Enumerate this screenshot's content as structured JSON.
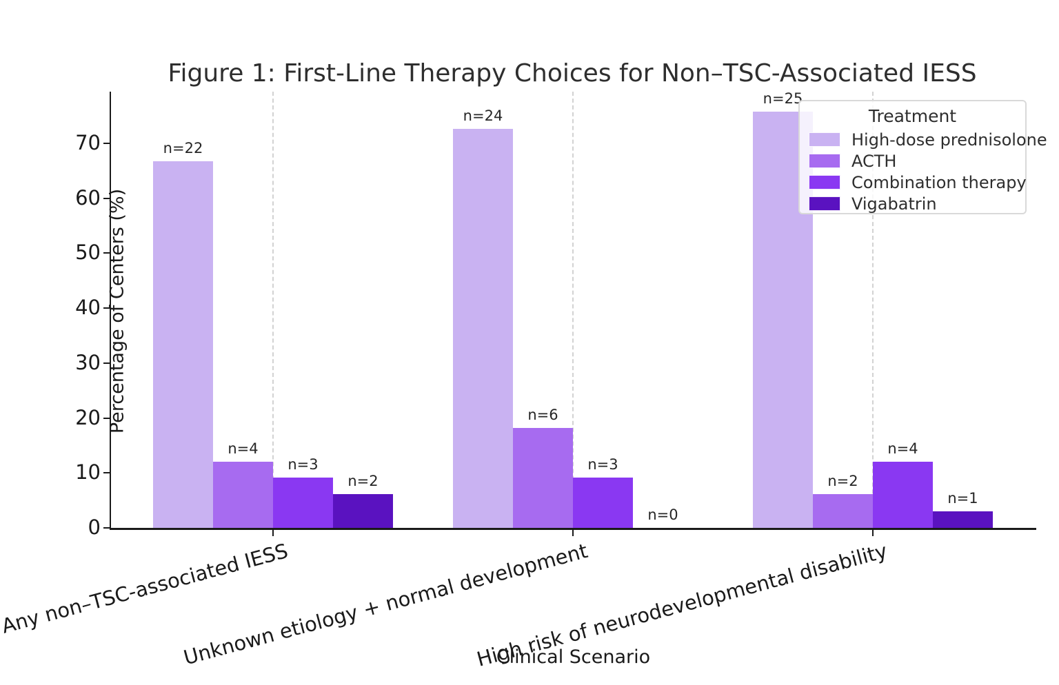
{
  "title": "Figure 1: First-Line Therapy Choices for Non–TSC-Associated IESS",
  "chart_data": {
    "type": "bar",
    "title": "Figure 1: First-Line Therapy Choices for Non–TSC-Associated IESS",
    "xlabel": "Clinical Scenario",
    "ylabel": "Percentage of Centers (%)",
    "ylim": [
      0,
      79.5
    ],
    "yticks": [
      0,
      10,
      20,
      30,
      40,
      50,
      60,
      70
    ],
    "grid": "vertical dashed lines at each category center",
    "legend_position": "upper right",
    "legend_title": "Treatment",
    "categories": [
      "Any non–TSC-associated IESS",
      "Unknown etiology + normal development",
      "High risk of neurodevelopmental disability"
    ],
    "series": [
      {
        "name": "High-dose prednisolone",
        "color": "#c9b2f2",
        "values": [
          66.7,
          72.7,
          75.8
        ],
        "counts": [
          22,
          24,
          25
        ],
        "bar_labels": [
          "n=22",
          "n=24",
          "n=25"
        ]
      },
      {
        "name": "ACTH",
        "color": "#a76bf0",
        "values": [
          12.1,
          18.2,
          6.1
        ],
        "counts": [
          4,
          6,
          2
        ],
        "bar_labels": [
          "n=4",
          "n=6",
          "n=2"
        ]
      },
      {
        "name": "Combination therapy",
        "color": "#8a38f2",
        "values": [
          9.1,
          9.1,
          12.1
        ],
        "counts": [
          3,
          3,
          4
        ],
        "bar_labels": [
          "n=3",
          "n=3",
          "n=4"
        ]
      },
      {
        "name": "Vigabatrin",
        "color": "#5a12c0",
        "values": [
          6.1,
          0.0,
          3.0
        ],
        "counts": [
          2,
          0,
          1
        ],
        "bar_labels": [
          "n=2",
          "n=0",
          "n=1"
        ]
      }
    ],
    "colors": {
      "axis": "#1a1a1a",
      "grid": "#d2d2d2",
      "title_text": "#2e2e2e",
      "bar_label_text": "#262626"
    }
  }
}
